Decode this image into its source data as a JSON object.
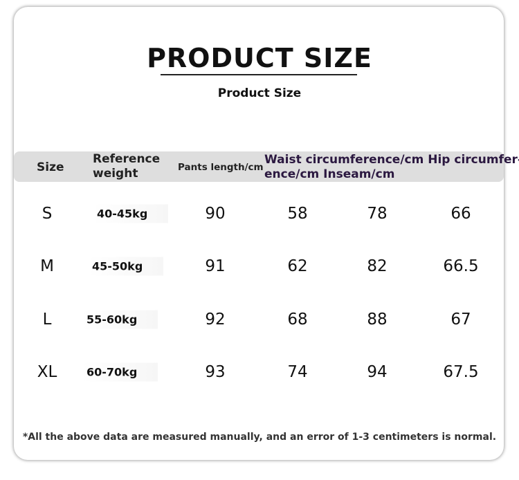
{
  "header": {
    "title": "PRODUCT SIZE",
    "subtitle": "Product Size"
  },
  "table": {
    "columns": [
      "Size",
      "Reference weight",
      "Pants length/cm",
      [
        "Waist circumference/cm Hip circumfer-",
        "ence/cm Inseam/cm"
      ]
    ],
    "rows": [
      [
        "S",
        "40-45kg",
        90,
        58,
        78,
        66
      ],
      [
        "M",
        "45-50kg",
        91,
        62,
        82,
        66.5
      ],
      [
        "L",
        "55-60kg",
        92,
        68,
        88,
        67
      ],
      [
        "XL",
        "60-70kg",
        93,
        74,
        94,
        67.5
      ]
    ]
  },
  "footer": {
    "note": "*All the above data are measured manually, and an error of 1-3 centimeters is normal."
  }
}
